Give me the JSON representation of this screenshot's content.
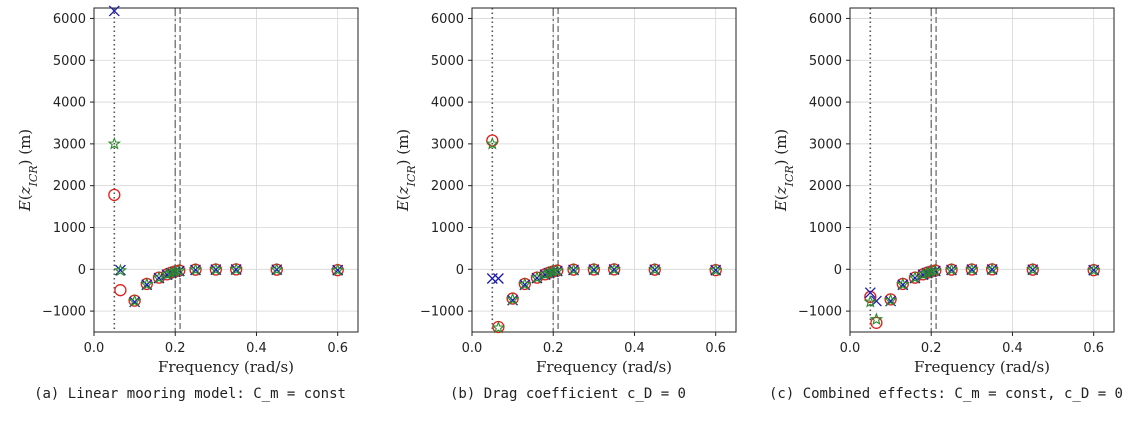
{
  "chart_data": [
    {
      "type": "scatter",
      "caption": "(a) Linear mooring model: C_m = const",
      "xlabel": "Frequency (rad/s)",
      "ylabel": "E(z_ICR) (m)",
      "xlim": [
        0.0,
        0.65
      ],
      "ylim": [
        -1500,
        6250
      ],
      "xticks": [
        0.0,
        0.2,
        0.4,
        0.6
      ],
      "yticks": [
        -1000,
        0,
        1000,
        2000,
        3000,
        4000,
        5000,
        6000
      ],
      "grid": true,
      "vlines": [
        {
          "x": 0.05,
          "style": "dotted"
        },
        {
          "x": 0.2,
          "style": "dashdot"
        },
        {
          "x": 0.212,
          "style": "dashed"
        }
      ],
      "series": [
        {
          "marker": "circle",
          "color": "#e0201b",
          "x": [
            0.05,
            0.065,
            0.1,
            0.13,
            0.16,
            0.18,
            0.19,
            0.2,
            0.21,
            0.25,
            0.3,
            0.35,
            0.45,
            0.6
          ],
          "y": [
            1780,
            -500,
            -750,
            -350,
            -200,
            -120,
            -80,
            -50,
            -30,
            -10,
            -5,
            -2,
            -10,
            -20
          ]
        },
        {
          "marker": "x",
          "color": "#1a1ab0",
          "x": [
            0.05,
            0.065,
            0.1,
            0.13,
            0.16,
            0.18,
            0.19,
            0.2,
            0.21,
            0.25,
            0.3,
            0.35,
            0.45,
            0.6
          ],
          "y": [
            6180,
            -20,
            -780,
            -370,
            -210,
            -130,
            -90,
            -60,
            -40,
            -15,
            -8,
            -5,
            -10,
            -20
          ]
        },
        {
          "marker": "star",
          "color": "#2a8a2a",
          "x": [
            0.05,
            0.065,
            0.1,
            0.13,
            0.16,
            0.18,
            0.19,
            0.2,
            0.21,
            0.25,
            0.3,
            0.35,
            0.45,
            0.6
          ],
          "y": [
            3000,
            -30,
            -760,
            -360,
            -205,
            -125,
            -85,
            -55,
            -35,
            -12,
            -6,
            -3,
            -10,
            -20
          ]
        }
      ]
    },
    {
      "type": "scatter",
      "caption": "(b) Drag coefficient c_D = 0",
      "xlabel": "Frequency (rad/s)",
      "ylabel": "E(z_ICR) (m)",
      "xlim": [
        0.0,
        0.65
      ],
      "ylim": [
        -1500,
        6250
      ],
      "xticks": [
        0.0,
        0.2,
        0.4,
        0.6
      ],
      "yticks": [
        -1000,
        0,
        1000,
        2000,
        3000,
        4000,
        5000,
        6000
      ],
      "grid": true,
      "vlines": [
        {
          "x": 0.05,
          "style": "dotted"
        },
        {
          "x": 0.2,
          "style": "dashdot"
        },
        {
          "x": 0.212,
          "style": "dashed"
        }
      ],
      "series": [
        {
          "marker": "circle",
          "color": "#e0201b",
          "x": [
            0.05,
            0.065,
            0.08,
            0.1,
            0.13,
            0.16,
            0.18,
            0.19,
            0.2,
            0.21,
            0.25,
            0.3,
            0.35,
            0.45,
            0.6
          ],
          "y": [
            3080,
            -1380,
            null,
            -700,
            -350,
            -200,
            -120,
            -80,
            -50,
            -30,
            -10,
            -5,
            -2,
            -10,
            -20
          ]
        },
        {
          "marker": "x",
          "color": "#1a1ab0",
          "x": [
            0.05,
            0.065,
            0.08,
            0.1,
            0.13,
            0.16,
            0.18,
            0.19,
            0.2,
            0.21,
            0.25,
            0.3,
            0.35,
            0.45,
            0.6
          ],
          "y": [
            -220,
            -220,
            null,
            -740,
            -370,
            -210,
            -130,
            -90,
            -60,
            -40,
            -15,
            -8,
            -5,
            -10,
            -20
          ]
        },
        {
          "marker": "star",
          "color": "#2a8a2a",
          "x": [
            0.05,
            0.065,
            0.08,
            0.1,
            0.13,
            0.16,
            0.18,
            0.19,
            0.2,
            0.21,
            0.25,
            0.3,
            0.35,
            0.45,
            0.6
          ],
          "y": [
            3000,
            -1400,
            null,
            -720,
            -360,
            -205,
            -125,
            -85,
            -55,
            -35,
            -12,
            -6,
            -3,
            -10,
            -20
          ]
        }
      ]
    },
    {
      "type": "scatter",
      "caption": "(c) Combined effects: C_m = const, c_D = 0",
      "xlabel": "Frequency (rad/s)",
      "ylabel": "E(z_ICR) (m)",
      "xlim": [
        0.0,
        0.65
      ],
      "ylim": [
        -1500,
        6250
      ],
      "xticks": [
        0.0,
        0.2,
        0.4,
        0.6
      ],
      "yticks": [
        -1000,
        0,
        1000,
        2000,
        3000,
        4000,
        5000,
        6000
      ],
      "grid": true,
      "vlines": [
        {
          "x": 0.05,
          "style": "dotted"
        },
        {
          "x": 0.2,
          "style": "dashdot"
        },
        {
          "x": 0.212,
          "style": "dashed"
        }
      ],
      "series": [
        {
          "marker": "circle",
          "color": "#e0201b",
          "x": [
            0.05,
            0.065,
            0.1,
            0.13,
            0.16,
            0.18,
            0.19,
            0.2,
            0.21,
            0.25,
            0.3,
            0.35,
            0.45,
            0.6
          ],
          "y": [
            -660,
            -1280,
            -720,
            -350,
            -200,
            -120,
            -80,
            -50,
            -30,
            -10,
            -5,
            -2,
            -10,
            -20
          ]
        },
        {
          "marker": "x",
          "color": "#1a1ab0",
          "x": [
            0.05,
            0.065,
            0.1,
            0.13,
            0.16,
            0.18,
            0.19,
            0.2,
            0.21,
            0.25,
            0.3,
            0.35,
            0.45,
            0.6
          ],
          "y": [
            -560,
            -760,
            -760,
            -370,
            -210,
            -130,
            -90,
            -60,
            -40,
            -15,
            -8,
            -5,
            -10,
            -20
          ]
        },
        {
          "marker": "star",
          "color": "#2a8a2a",
          "x": [
            0.05,
            0.065,
            0.1,
            0.13,
            0.16,
            0.18,
            0.19,
            0.2,
            0.21,
            0.25,
            0.3,
            0.35,
            0.45,
            0.6
          ],
          "y": [
            -780,
            -1200,
            -740,
            -360,
            -205,
            -125,
            -85,
            -55,
            -35,
            -12,
            -6,
            -3,
            -10,
            -20
          ]
        }
      ]
    }
  ]
}
